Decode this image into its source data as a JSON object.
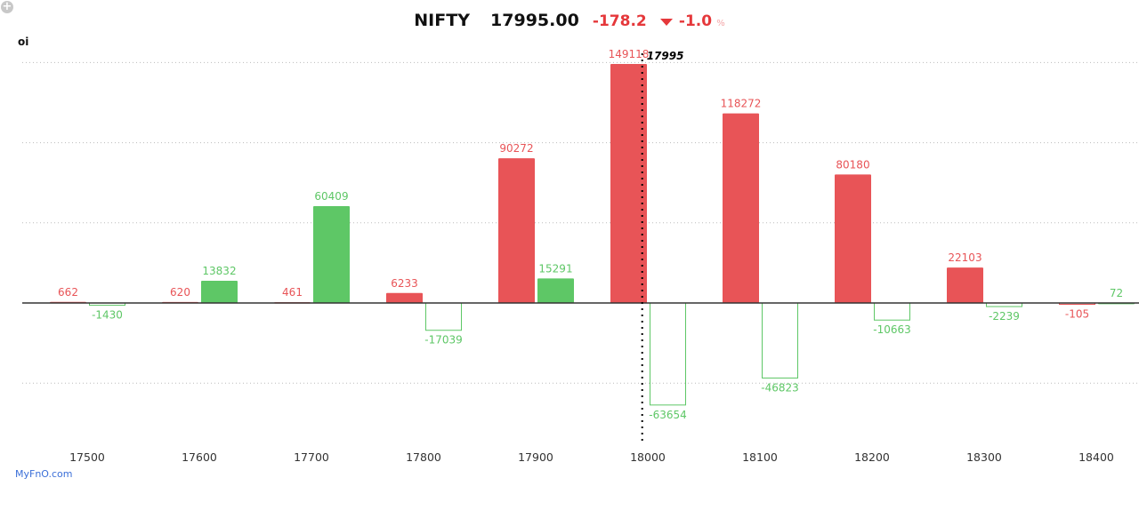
{
  "header": {
    "symbol": "NIFTY",
    "price": "17995.00",
    "change": "-178.2",
    "change_pct": "-1.0",
    "pct_sign": "%",
    "direction_icon": "triangle-down"
  },
  "toolbar": {
    "zoom_icon": "plus-circle"
  },
  "brand": "MyFnO.com",
  "colors": {
    "call": "#e85457",
    "put": "#5ec766",
    "spot_line": "#000000"
  },
  "chart_data": {
    "type": "bar",
    "title": "",
    "ylabel": "oi",
    "xlabel": "",
    "categories": [
      "17500",
      "17600",
      "17700",
      "17800",
      "17900",
      "18000",
      "18100",
      "18200",
      "18300",
      "18400"
    ],
    "series": [
      {
        "color": "#e85457",
        "values": [
          662,
          620,
          461,
          6233,
          90272,
          149118,
          118272,
          80180,
          22103,
          -105
        ]
      },
      {
        "color": "#5ec766",
        "values": [
          -1430,
          13832,
          60409,
          -17039,
          15291,
          -63654,
          -46823,
          -10663,
          -2239,
          72
        ]
      }
    ],
    "negative_style": "outline",
    "ylim": [
      -88000,
      155000
    ],
    "gridlines": [
      150000,
      100000,
      50000,
      0,
      -50000
    ],
    "grid": true,
    "annotation": {
      "label": "17995",
      "x": 17995
    }
  }
}
